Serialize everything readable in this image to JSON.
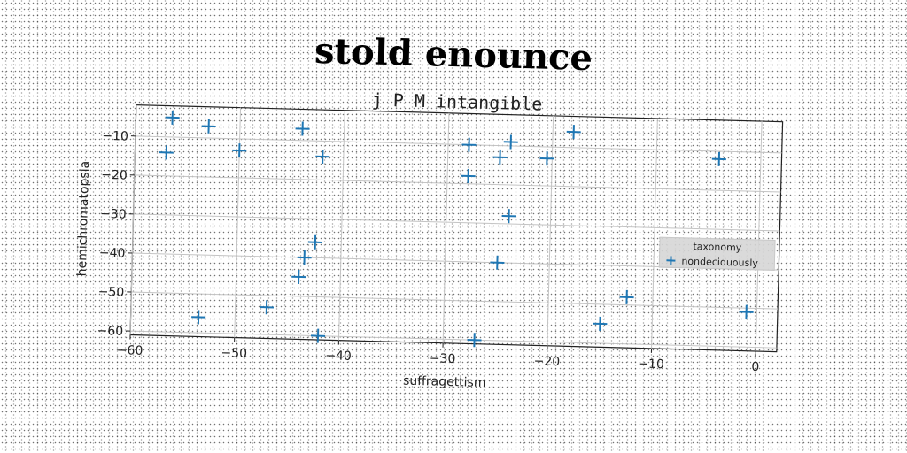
{
  "main_title": "stold enounce",
  "chart_data": {
    "type": "scatter",
    "title": "j P M intangible",
    "xlabel": "suffragettism",
    "ylabel": "hemichromatopsia",
    "xlim": [
      -60,
      2
    ],
    "ylim": [
      -61,
      -2
    ],
    "xticks": [
      -60,
      -50,
      -40,
      -30,
      -20,
      -10,
      0
    ],
    "yticks": [
      -10,
      -20,
      -30,
      -40,
      -50,
      -60
    ],
    "grid": true,
    "legend": {
      "title": "taxonomy",
      "position": "right",
      "entries": [
        "nondeciduously"
      ]
    },
    "marker_color": "#1f77b4",
    "series": [
      {
        "name": "nondeciduously",
        "marker": "+",
        "points": [
          {
            "x": -56.5,
            "y": -5
          },
          {
            "x": -53,
            "y": -7
          },
          {
            "x": -57,
            "y": -14
          },
          {
            "x": -50,
            "y": -13
          },
          {
            "x": -44,
            "y": -7
          },
          {
            "x": -42,
            "y": -14
          },
          {
            "x": -28,
            "y": -10
          },
          {
            "x": -24,
            "y": -9
          },
          {
            "x": -25,
            "y": -13
          },
          {
            "x": -20.5,
            "y": -13
          },
          {
            "x": -18,
            "y": -6
          },
          {
            "x": -28,
            "y": -18
          },
          {
            "x": -4,
            "y": -12
          },
          {
            "x": -24,
            "y": -28
          },
          {
            "x": -42.5,
            "y": -36
          },
          {
            "x": -43.5,
            "y": -40
          },
          {
            "x": -25,
            "y": -40
          },
          {
            "x": -44,
            "y": -45
          },
          {
            "x": -47,
            "y": -53
          },
          {
            "x": -53.5,
            "y": -56
          },
          {
            "x": -42,
            "y": -60
          },
          {
            "x": -27,
            "y": -60
          },
          {
            "x": -15,
            "y": -55
          },
          {
            "x": -12.5,
            "y": -48
          },
          {
            "x": -1,
            "y": -51
          }
        ]
      }
    ]
  }
}
